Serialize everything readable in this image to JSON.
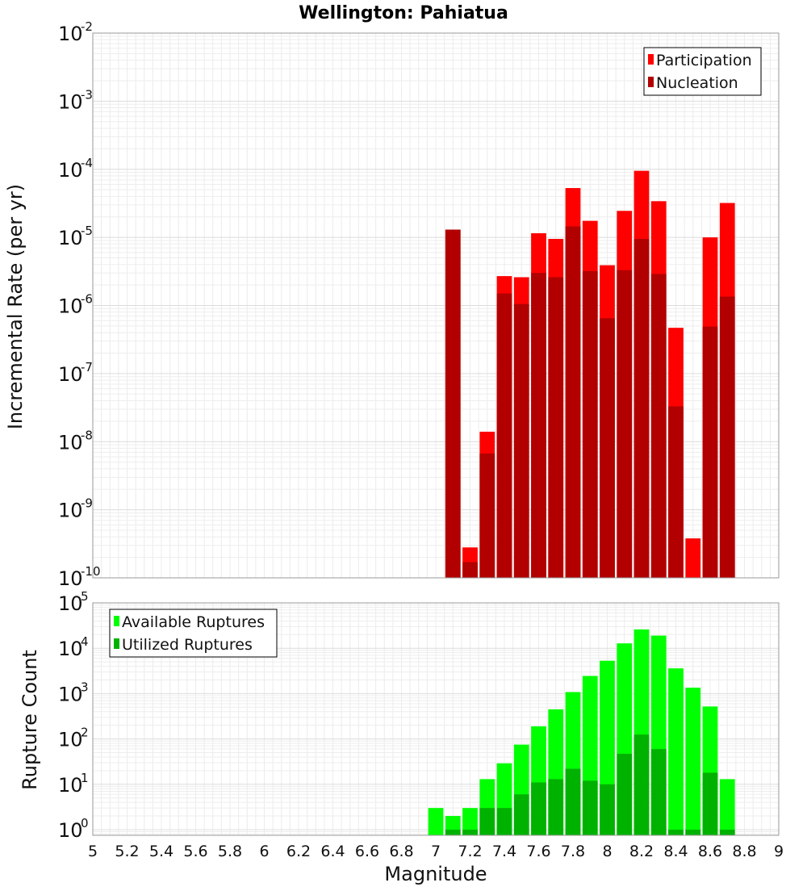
{
  "chart_data": {
    "title": "Wellington: Pahiatua",
    "xlabel": "Magnitude",
    "xlim": [
      5,
      9
    ],
    "x_ticks": [
      "5",
      "5.2",
      "5.4",
      "5.6",
      "5.8",
      "6",
      "6.2",
      "6.4",
      "6.6",
      "6.8",
      "7",
      "7.2",
      "7.4",
      "7.6",
      "7.8",
      "8",
      "8.2",
      "8.4",
      "8.6",
      "8.8",
      "9"
    ],
    "panels": [
      {
        "type": "bar",
        "ylabel": "Incremental Rate (per yr)",
        "yscale": "log",
        "ylim": [
          1e-10,
          0.01
        ],
        "y_tick_exponents": [
          "-10",
          "-9",
          "-8",
          "-7",
          "-6",
          "-5",
          "-4",
          "-3",
          "-2"
        ],
        "y_tick_base": "10",
        "grid": true,
        "legend_position": "top-right",
        "x": [
          7.1,
          7.2,
          7.3,
          7.4,
          7.5,
          7.6,
          7.7,
          7.8,
          7.9,
          8.0,
          8.1,
          8.2,
          8.3,
          8.4,
          8.5,
          8.6,
          8.7
        ],
        "series": [
          {
            "name": "Participation",
            "color": "#ff0000",
            "values": [
              1.3e-05,
              2.8e-10,
              1.4e-08,
              2.7e-06,
              2.6e-06,
              1.15e-05,
              9.5e-06,
              5.3e-05,
              1.75e-05,
              3.9e-06,
              2.45e-05,
              9.5e-05,
              3.4e-05,
              4.7e-07,
              3.8e-10,
              1e-05,
              3.2e-05
            ]
          },
          {
            "name": "Nucleation",
            "color": "#b20000",
            "values": [
              1.3e-05,
              1.7e-10,
              6.7e-09,
              1.5e-06,
              1.05e-06,
              3e-06,
              2.6e-06,
              1.45e-05,
              3.2e-06,
              6.5e-07,
              3.3e-06,
              9.5e-06,
              2.9e-06,
              3.3e-08,
              null,
              4.9e-07,
              1.35e-06
            ]
          }
        ]
      },
      {
        "type": "bar",
        "ylabel": "Rupture Count",
        "yscale": "log",
        "ylim": [
          0.75,
          100000
        ],
        "y_tick_exponents": [
          "0",
          "1",
          "2",
          "3",
          "4",
          "5"
        ],
        "y_tick_base": "10",
        "grid": true,
        "legend_position": "top-left",
        "x": [
          7.0,
          7.1,
          7.2,
          7.3,
          7.4,
          7.5,
          7.6,
          7.7,
          7.8,
          7.9,
          8.0,
          8.1,
          8.2,
          8.3,
          8.4,
          8.5,
          8.6,
          8.7
        ],
        "series": [
          {
            "name": "Available Ruptures",
            "color": "#00ff00",
            "values": [
              3,
              2,
              3,
              13,
              29,
              75,
              190,
              450,
              1080,
              2450,
              5300,
              12800,
              26000,
              19000,
              3600,
              1350,
              520,
              13
            ]
          },
          {
            "name": "Utilized Ruptures",
            "color": "#00b200",
            "values": [
              null,
              1,
              1,
              3,
              3,
              6,
              11,
              13,
              22,
              12,
              10,
              47,
              125,
              60,
              1,
              1,
              18,
              1
            ]
          }
        ]
      }
    ]
  }
}
